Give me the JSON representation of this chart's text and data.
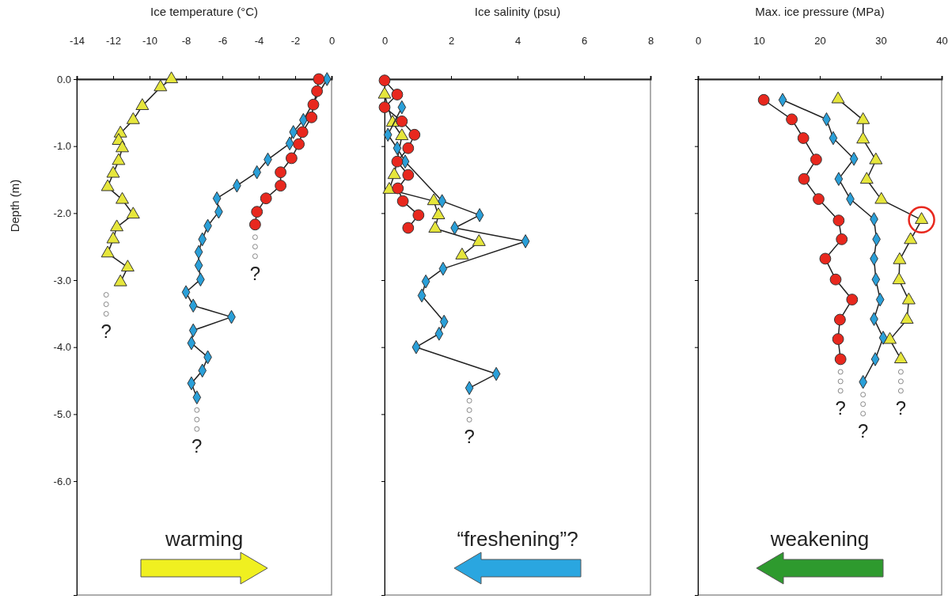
{
  "chart_data": [
    {
      "type": "line",
      "xlabel": "Ice temperature (°C)",
      "ylabel": "Depth (m)",
      "xlim": [
        -14,
        0
      ],
      "xticks": [
        -14,
        -12,
        -10,
        -8,
        -6,
        -4,
        -2,
        0
      ],
      "ylim": [
        -7.7,
        0
      ],
      "yticks": [
        {
          "value": 0,
          "label": "0.0"
        },
        {
          "value": -1,
          "label": "-1.0"
        },
        {
          "value": -2,
          "label": "-2.0"
        },
        {
          "value": -3,
          "label": "-3.0"
        },
        {
          "value": -4,
          "label": "-4.0"
        },
        {
          "value": -5,
          "label": "-5.0"
        },
        {
          "value": -6,
          "label": "-6.0"
        }
      ],
      "series": [
        {
          "color": "#e6e63c",
          "marker": "triangle",
          "x": [
            -8.8,
            -9.4,
            -10.4,
            -10.9,
            -11.6,
            -11.7,
            -11.5,
            -11.7,
            -12.0,
            -12.3,
            -11.5,
            -10.9,
            -11.8,
            -12.0,
            -12.3,
            -11.2,
            -11.6
          ],
          "values": [
            0.0,
            -0.12,
            -0.4,
            -0.61,
            -0.81,
            -0.92,
            -1.03,
            -1.22,
            -1.41,
            -1.61,
            -1.8,
            -2.02,
            -2.21,
            -2.39,
            -2.6,
            -2.81,
            -3.03
          ]
        },
        {
          "color": "#2a9fd8",
          "marker": "diamond",
          "x": [
            -0.25,
            -1.55,
            -2.1,
            -2.3,
            -3.5,
            -4.1,
            -5.2,
            -6.3,
            -6.2,
            -6.8,
            -7.1,
            -7.3,
            -7.3,
            -7.2,
            -8.0,
            -7.6,
            -5.5,
            -7.6,
            -7.7,
            -6.8,
            -7.1,
            -7.7,
            -7.4
          ],
          "values": [
            0.0,
            -0.61,
            -0.79,
            -0.96,
            -1.2,
            -1.39,
            -1.59,
            -1.78,
            -1.98,
            -2.19,
            -2.39,
            -2.58,
            -2.78,
            -2.99,
            -3.18,
            -3.38,
            -3.55,
            -3.75,
            -3.94,
            -4.15,
            -4.35,
            -4.54,
            -4.75
          ]
        },
        {
          "color": "#e8281e",
          "marker": "circle",
          "x": [
            -0.7,
            -0.8,
            -1.0,
            -1.1,
            -1.6,
            -1.8,
            -2.2,
            -2.8,
            -2.8,
            -3.6,
            -4.1,
            -4.2
          ],
          "values": [
            0.0,
            -0.18,
            -0.38,
            -0.57,
            -0.79,
            -0.97,
            -1.18,
            -1.39,
            -1.59,
            -1.78,
            -1.98,
            -2.17
          ]
        }
      ],
      "annotations": [
        "?",
        "?",
        "?",
        "warming"
      ]
    },
    {
      "type": "line",
      "xlabel": "Ice salinity (psu)",
      "xlim": [
        0,
        8
      ],
      "xticks": [
        0,
        2,
        4,
        6,
        8
      ],
      "ylim": [
        -7.7,
        0
      ],
      "yticks": [
        {
          "value": 0,
          "label": null
        },
        {
          "value": -1,
          "label": null
        },
        {
          "value": -2,
          "label": null
        },
        {
          "value": -3,
          "label": null
        },
        {
          "value": -4,
          "label": null
        },
        {
          "value": -5,
          "label": null
        },
        {
          "value": -6,
          "label": null
        }
      ],
      "tick_labels": "x",
      "series": [
        {
          "color": "#e6e63c",
          "marker": "triangle",
          "x": [
            0.0,
            0.24,
            0.52,
            0.29,
            0.14,
            1.48,
            1.62,
            1.52,
            2.84,
            2.33
          ],
          "values": [
            -0.23,
            -0.65,
            -0.85,
            -1.43,
            -1.65,
            -1.82,
            -2.03,
            -2.23,
            -2.43,
            -2.63
          ]
        },
        {
          "color": "#2a9fd8",
          "marker": "diamond",
          "x": [
            0.52,
            0.1,
            0.38,
            0.62,
            1.73,
            2.86,
            2.11,
            4.24,
            1.76,
            1.24,
            1.12,
            1.79,
            1.64,
            0.95,
            3.36,
            2.55
          ],
          "values": [
            -0.42,
            -0.83,
            -1.03,
            -1.23,
            -1.82,
            -2.03,
            -2.22,
            -2.42,
            -2.83,
            -3.02,
            -3.23,
            -3.62,
            -3.8,
            -4.0,
            -4.4,
            -4.61
          ]
        },
        {
          "color": "#e8281e",
          "marker": "circle",
          "x": [
            0.0,
            0.38,
            0.0,
            0.52,
            0.9,
            0.71,
            0.38,
            0.71,
            0.4,
            0.55,
            1.02,
            0.71
          ],
          "values": [
            -0.02,
            -0.23,
            -0.42,
            -0.63,
            -0.83,
            -1.03,
            -1.23,
            -1.43,
            -1.63,
            -1.82,
            -2.03,
            -2.22
          ]
        }
      ],
      "annotations": [
        "?",
        "“freshening”?"
      ]
    },
    {
      "type": "line",
      "xlabel": "Max. ice pressure (MPa)",
      "xlim": [
        0,
        40
      ],
      "xticks": [
        0,
        10,
        20,
        30,
        40
      ],
      "ylim": [
        -7.7,
        0
      ],
      "yticks": [
        {
          "value": -1,
          "label": null
        },
        {
          "value": -2,
          "label": null
        },
        {
          "value": -3,
          "label": null
        },
        {
          "value": -4,
          "label": null
        }
      ],
      "tick_labels": "x",
      "series": [
        {
          "color": "#e6e63c",
          "marker": "triangle",
          "x": [
            23.0,
            27.1,
            27.1,
            29.2,
            27.7,
            30.1,
            36.7,
            34.9,
            33.1,
            33.0,
            34.6,
            34.3,
            31.5,
            33.3
          ],
          "values": [
            -0.3,
            -0.61,
            -0.9,
            -1.21,
            -1.5,
            -1.8,
            -2.1,
            -2.4,
            -2.7,
            -3.0,
            -3.3,
            -3.59,
            -3.89,
            -4.18
          ]
        },
        {
          "color": "#2a9fd8",
          "marker": "diamond",
          "x": [
            13.9,
            21.1,
            22.2,
            25.6,
            23.1,
            25.0,
            28.9,
            29.3,
            28.9,
            29.2,
            29.9,
            28.9,
            30.4,
            29.1,
            27.1
          ],
          "values": [
            -0.31,
            -0.6,
            -0.88,
            -1.19,
            -1.49,
            -1.79,
            -2.09,
            -2.39,
            -2.68,
            -2.99,
            -3.29,
            -3.58,
            -3.86,
            -4.18,
            -4.52
          ]
        },
        {
          "color": "#e8281e",
          "marker": "circle",
          "x": [
            10.8,
            15.4,
            17.3,
            19.4,
            17.4,
            19.8,
            23.1,
            23.6,
            20.9,
            22.6,
            25.3,
            23.3,
            23.0,
            23.4
          ],
          "values": [
            -0.31,
            -0.6,
            -0.88,
            -1.2,
            -1.49,
            -1.79,
            -2.11,
            -2.39,
            -2.68,
            -2.99,
            -3.29,
            -3.59,
            -3.88,
            -4.18
          ]
        }
      ],
      "annotations": [
        "?",
        "?",
        "?",
        "weakening"
      ]
    }
  ]
}
